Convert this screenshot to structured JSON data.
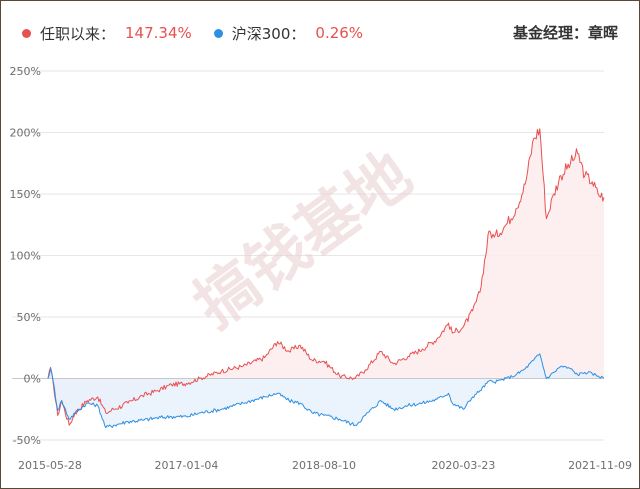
{
  "legend": {
    "tenure": {
      "label": "任职以来：",
      "value": "147.34%",
      "color": "#e8504f"
    },
    "hs300": {
      "label": "沪深300：",
      "value": "0.26%",
      "color": "#2e8fe3"
    }
  },
  "manager_label": "基金经理：章晖",
  "watermark": "搞钱基地",
  "chart_data": {
    "type": "line",
    "y_unit": "%",
    "ylim": [
      -50,
      250
    ],
    "yticks": [
      "250%",
      "200%",
      "150%",
      "100%",
      "50%",
      "0%",
      "-50%"
    ],
    "ytick_values": [
      250,
      200,
      150,
      100,
      50,
      0,
      -50
    ],
    "xlim": [
      "2015-05-28",
      "2021-11-09"
    ],
    "xticks": [
      "2015-05-28",
      "2017-01-04",
      "2018-08-10",
      "2020-03-23",
      "2021-11-09"
    ],
    "grid": true,
    "series": [
      {
        "name": "任职以来",
        "color": "#e8504f",
        "fill": "#fdecec",
        "points": [
          [
            "2015-05-28",
            0
          ],
          [
            "2015-06-08",
            9
          ],
          [
            "2015-06-20",
            -5
          ],
          [
            "2015-07-08",
            -30
          ],
          [
            "2015-07-25",
            -18
          ],
          [
            "2015-08-26",
            -38
          ],
          [
            "2015-09-20",
            -28
          ],
          [
            "2015-11-10",
            -18
          ],
          [
            "2015-12-25",
            -15
          ],
          [
            "2016-01-28",
            -28
          ],
          [
            "2016-03-01",
            -25
          ],
          [
            "2016-05-01",
            -20
          ],
          [
            "2016-07-01",
            -14
          ],
          [
            "2016-09-01",
            -10
          ],
          [
            "2016-11-01",
            -5
          ],
          [
            "2017-01-04",
            -4
          ],
          [
            "2017-03-01",
            0
          ],
          [
            "2017-06-01",
            6
          ],
          [
            "2017-09-01",
            10
          ],
          [
            "2017-12-01",
            17
          ],
          [
            "2018-01-25",
            30
          ],
          [
            "2018-03-15",
            22
          ],
          [
            "2018-05-01",
            27
          ],
          [
            "2018-06-20",
            15
          ],
          [
            "2018-08-10",
            14
          ],
          [
            "2018-10-15",
            2
          ],
          [
            "2018-12-20",
            0
          ],
          [
            "2019-02-01",
            7
          ],
          [
            "2019-04-08",
            22
          ],
          [
            "2019-06-01",
            12
          ],
          [
            "2019-08-01",
            18
          ],
          [
            "2019-10-01",
            24
          ],
          [
            "2019-12-01",
            32
          ],
          [
            "2020-01-20",
            45
          ],
          [
            "2020-02-05",
            37
          ],
          [
            "2020-03-23",
            42
          ],
          [
            "2020-05-01",
            55
          ],
          [
            "2020-06-01",
            70
          ],
          [
            "2020-07-10",
            120
          ],
          [
            "2020-08-01",
            115
          ],
          [
            "2020-09-20",
            125
          ],
          [
            "2020-11-01",
            138
          ],
          [
            "2020-12-10",
            158
          ],
          [
            "2021-01-15",
            195
          ],
          [
            "2021-02-10",
            203
          ],
          [
            "2021-03-10",
            130
          ],
          [
            "2021-04-10",
            150
          ],
          [
            "2021-05-10",
            165
          ],
          [
            "2021-06-20",
            175
          ],
          [
            "2021-07-20",
            183
          ],
          [
            "2021-08-20",
            165
          ],
          [
            "2021-09-20",
            160
          ],
          [
            "2021-10-15",
            150
          ],
          [
            "2021-11-09",
            147.34
          ]
        ]
      },
      {
        "name": "沪深300",
        "color": "#2e8fe3",
        "fill": "#e7f1fb",
        "points": [
          [
            "2015-05-28",
            0
          ],
          [
            "2015-06-08",
            8
          ],
          [
            "2015-06-20",
            -3
          ],
          [
            "2015-07-08",
            -26
          ],
          [
            "2015-07-25",
            -18
          ],
          [
            "2015-08-26",
            -33
          ],
          [
            "2015-09-20",
            -28
          ],
          [
            "2015-11-10",
            -20
          ],
          [
            "2015-12-25",
            -22
          ],
          [
            "2016-01-28",
            -40
          ],
          [
            "2016-03-01",
            -38
          ],
          [
            "2016-05-01",
            -35
          ],
          [
            "2016-07-01",
            -34
          ],
          [
            "2016-09-01",
            -32
          ],
          [
            "2016-11-01",
            -31
          ],
          [
            "2017-01-04",
            -31
          ],
          [
            "2017-03-01",
            -28
          ],
          [
            "2017-06-01",
            -25
          ],
          [
            "2017-09-01",
            -20
          ],
          [
            "2017-12-01",
            -15
          ],
          [
            "2018-01-25",
            -12
          ],
          [
            "2018-03-15",
            -18
          ],
          [
            "2018-05-01",
            -20
          ],
          [
            "2018-06-20",
            -28
          ],
          [
            "2018-08-10",
            -30
          ],
          [
            "2018-10-15",
            -33
          ],
          [
            "2018-12-20",
            -38
          ],
          [
            "2019-02-01",
            -30
          ],
          [
            "2019-04-08",
            -18
          ],
          [
            "2019-06-01",
            -25
          ],
          [
            "2019-08-01",
            -22
          ],
          [
            "2019-10-01",
            -20
          ],
          [
            "2019-12-01",
            -17
          ],
          [
            "2020-01-20",
            -12
          ],
          [
            "2020-02-05",
            -20
          ],
          [
            "2020-03-23",
            -25
          ],
          [
            "2020-05-01",
            -15
          ],
          [
            "2020-06-01",
            -10
          ],
          [
            "2020-07-10",
            -2
          ],
          [
            "2020-08-01",
            -3
          ],
          [
            "2020-09-20",
            0
          ],
          [
            "2020-11-01",
            3
          ],
          [
            "2020-12-10",
            8
          ],
          [
            "2021-01-15",
            15
          ],
          [
            "2021-02-10",
            20
          ],
          [
            "2021-03-10",
            0
          ],
          [
            "2021-04-10",
            5
          ],
          [
            "2021-05-10",
            10
          ],
          [
            "2021-06-20",
            8
          ],
          [
            "2021-07-20",
            3
          ],
          [
            "2021-08-20",
            5
          ],
          [
            "2021-09-20",
            4
          ],
          [
            "2021-10-15",
            2
          ],
          [
            "2021-11-09",
            0.26
          ]
        ]
      }
    ]
  }
}
